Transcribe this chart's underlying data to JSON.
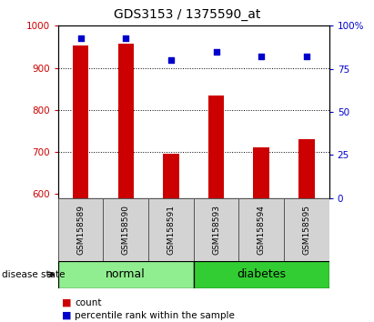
{
  "title": "GDS3153 / 1375590_at",
  "samples": [
    "GSM158589",
    "GSM158590",
    "GSM158591",
    "GSM158593",
    "GSM158594",
    "GSM158595"
  ],
  "counts": [
    952,
    957,
    695,
    835,
    710,
    730
  ],
  "percentiles": [
    93,
    93,
    80,
    85,
    82,
    82
  ],
  "groups": [
    {
      "label": "normal",
      "indices": [
        0,
        1,
        2
      ],
      "color": "#90EE90"
    },
    {
      "label": "diabetes",
      "indices": [
        3,
        4,
        5
      ],
      "color": "#32CD32"
    }
  ],
  "ylim_left": [
    590,
    1000
  ],
  "ylim_right": [
    0,
    100
  ],
  "yticks_left": [
    600,
    700,
    800,
    900,
    1000
  ],
  "yticks_right": [
    0,
    25,
    50,
    75,
    100
  ],
  "bar_color": "#CC0000",
  "scatter_color": "#0000CC",
  "bar_bottom": 590,
  "grid_lines": [
    700,
    800,
    900
  ],
  "label_count": "count",
  "label_percentile": "percentile rank within the sample",
  "disease_state_label": "disease state",
  "tick_label_color_left": "#CC0000",
  "tick_label_color_right": "#0000CC"
}
